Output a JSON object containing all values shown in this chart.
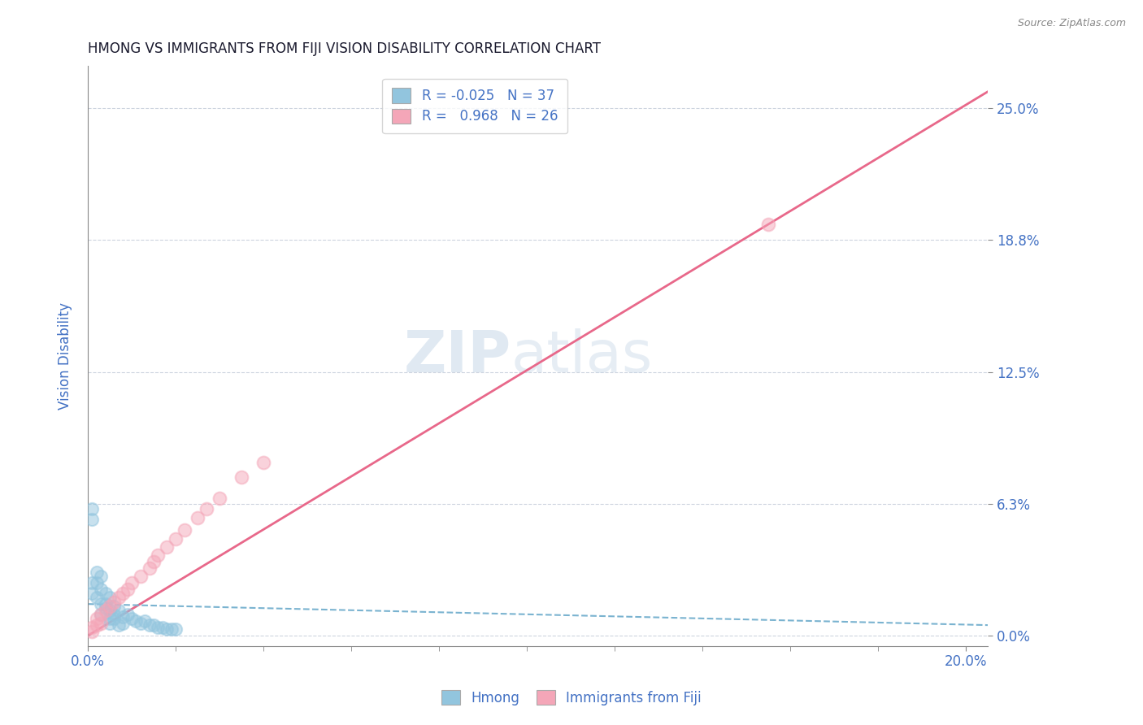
{
  "title": "HMONG VS IMMIGRANTS FROM FIJI VISION DISABILITY CORRELATION CHART",
  "source": "Source: ZipAtlas.com",
  "ylabel_label": "Vision Disability",
  "legend_label1": "Hmong",
  "legend_label2": "Immigrants from Fiji",
  "r1": "-0.025",
  "n1": "37",
  "r2": "0.968",
  "n2": "26",
  "xlim": [
    0,
    0.205
  ],
  "ylim": [
    -0.005,
    0.27
  ],
  "xticks": [
    0.0,
    0.2
  ],
  "xtick_labels": [
    "0.0%",
    "20.0%"
  ],
  "yticks": [
    0.0,
    0.0625,
    0.125,
    0.1875,
    0.25
  ],
  "ytick_labels": [
    "0.0%",
    "6.3%",
    "12.5%",
    "18.8%",
    "25.0%"
  ],
  "watermark_zip": "ZIP",
  "watermark_atlas": "atlas",
  "background": "#ffffff",
  "blue_color": "#92c5de",
  "pink_color": "#f4a6b8",
  "blue_line_color": "#7ab3d0",
  "pink_line_color": "#e8688a",
  "axis_color": "#4472c4",
  "grid_color": "#c8d0dc",
  "title_color": "#1a1a2e",
  "source_color": "#888888",
  "hmong_x": [
    0.001,
    0.001,
    0.002,
    0.002,
    0.003,
    0.003,
    0.004,
    0.004,
    0.005,
    0.005,
    0.005,
    0.006,
    0.006,
    0.007,
    0.008,
    0.009,
    0.01,
    0.011,
    0.012,
    0.013,
    0.014,
    0.015,
    0.016,
    0.017,
    0.018,
    0.019,
    0.02,
    0.002,
    0.003,
    0.003,
    0.004,
    0.005,
    0.006,
    0.007,
    0.008,
    0.001,
    0.001
  ],
  "hmong_y": [
    0.06,
    0.055,
    0.025,
    0.018,
    0.022,
    0.015,
    0.02,
    0.013,
    0.018,
    0.012,
    0.008,
    0.014,
    0.01,
    0.012,
    0.009,
    0.01,
    0.008,
    0.007,
    0.006,
    0.007,
    0.005,
    0.005,
    0.004,
    0.004,
    0.003,
    0.003,
    0.003,
    0.03,
    0.028,
    0.01,
    0.015,
    0.006,
    0.008,
    0.005,
    0.006,
    0.025,
    0.02
  ],
  "fiji_x": [
    0.001,
    0.001,
    0.002,
    0.002,
    0.003,
    0.003,
    0.004,
    0.005,
    0.006,
    0.007,
    0.008,
    0.009,
    0.01,
    0.012,
    0.014,
    0.015,
    0.016,
    0.018,
    0.02,
    0.022,
    0.025,
    0.027,
    0.03,
    0.035,
    0.04,
    0.155
  ],
  "fiji_y": [
    0.002,
    0.004,
    0.005,
    0.008,
    0.006,
    0.01,
    0.012,
    0.014,
    0.016,
    0.018,
    0.02,
    0.022,
    0.025,
    0.028,
    0.032,
    0.035,
    0.038,
    0.042,
    0.046,
    0.05,
    0.056,
    0.06,
    0.065,
    0.075,
    0.082,
    0.195
  ],
  "fiji_line_x0": 0.0,
  "fiji_line_y0": 0.0,
  "fiji_line_x1": 0.205,
  "fiji_line_y1": 0.258,
  "hmong_line_x0": 0.0,
  "hmong_line_y0": 0.015,
  "hmong_line_x1": 0.205,
  "hmong_line_y1": 0.005
}
